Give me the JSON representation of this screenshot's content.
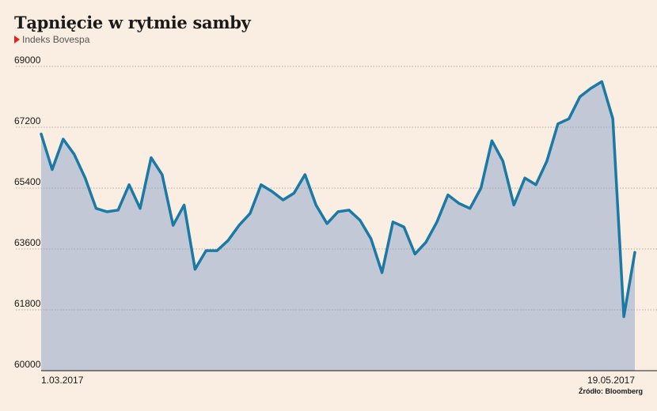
{
  "chart_data": {
    "type": "area",
    "title": "Tąpnięcie w rytmie samby",
    "subtitle": "Indeks Bovespa",
    "source": "Źródło: Bloomberg",
    "x_start_label": "1.03.2017",
    "x_end_label": "19.05.2017",
    "ylim": [
      60000,
      69000
    ],
    "yticks": [
      60000,
      61800,
      63600,
      65400,
      67200,
      69000
    ],
    "grid": true,
    "colors": {
      "line": "#1b7aa5",
      "fill": "#c2c8d6",
      "grid": "#9b9b9b",
      "background": "#f9eee1"
    },
    "series": [
      {
        "values": [
          67000,
          65950,
          66850,
          66400,
          65700,
          64800,
          64700,
          64750,
          65500,
          64800,
          66300,
          65800,
          64300,
          64900,
          63000,
          63550,
          63550,
          63850,
          64300,
          64650,
          65500,
          65300,
          65050,
          65250,
          65800,
          64900,
          64350,
          64700,
          64750,
          64450,
          63900,
          62900,
          64400,
          64250,
          63450,
          63800,
          64400,
          65200,
          64950,
          64800,
          65400,
          66800,
          66200,
          64900,
          65700,
          65500,
          66200,
          67300,
          67450,
          68100,
          68350,
          68550,
          67450,
          61600,
          63500
        ]
      }
    ]
  }
}
